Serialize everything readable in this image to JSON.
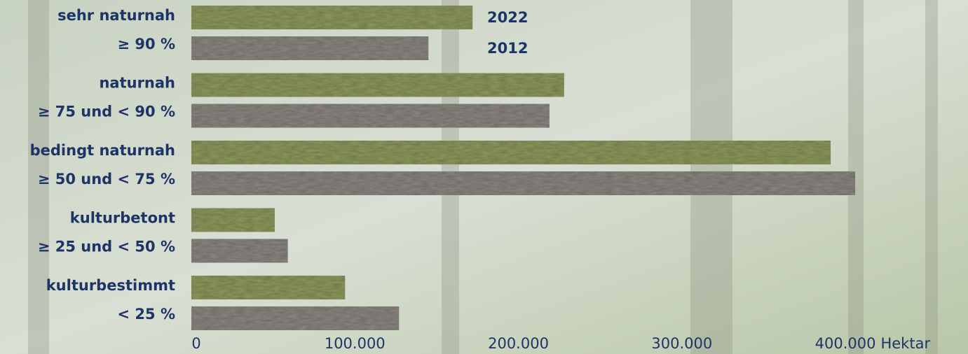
{
  "chart_data": {
    "type": "hbar",
    "categories": [
      "sehr naturnah",
      "naturnah",
      "bedingt naturnah",
      "kulturbetont",
      "kulturbestimmt"
    ],
    "category_sublabels": [
      "≥ 90 %",
      "≥ 75 und < 90 %",
      "≥ 50 und < 75 %",
      "≥ 25 und < 50 %",
      "< 25 %"
    ],
    "series": [
      {
        "name": "2022",
        "color": "#8f9a5e",
        "values": [
          172000,
          228000,
          391000,
          51000,
          94000
        ]
      },
      {
        "name": "2012",
        "color": "#8c8782",
        "values": [
          145000,
          219000,
          406000,
          59000,
          127000
        ]
      }
    ],
    "xlim": [
      0,
      475000
    ],
    "xticks": [
      0,
      {
        "value": 100000,
        "label": "100.000"
      },
      {
        "value": 200000,
        "label": "200.000"
      },
      {
        "value": 300000,
        "label": "300.000"
      },
      {
        "value": 400000,
        "label": "400.000"
      }
    ],
    "x_label": "Hektar",
    "grid": false
  }
}
